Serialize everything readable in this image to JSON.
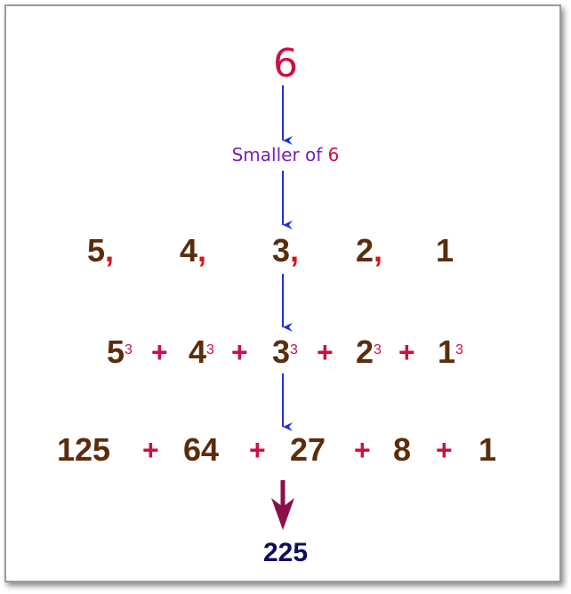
{
  "top_number": "6",
  "smaller_label": {
    "text": "Smaller of ",
    "number": "6"
  },
  "numbers_row": {
    "items": [
      "5",
      "4",
      "3",
      "2",
      "1"
    ],
    "separator": ","
  },
  "cubes_row": {
    "bases": [
      "5",
      "4",
      "3",
      "2",
      "1"
    ],
    "exponent": "3",
    "operator": "+"
  },
  "values_row": {
    "values": [
      "125",
      "64",
      "27",
      "8",
      "1"
    ],
    "operator": "+"
  },
  "result": "225",
  "colors": {
    "top_number": "#cc1140",
    "label": "#7a1fb5",
    "digits": "#5a2d0c",
    "operator": "#cc1140",
    "comma": "#dd1111",
    "arrow_blue": "#1f2fd6",
    "arrow_final": "#8a0f4a",
    "result": "#0d0d5e"
  }
}
